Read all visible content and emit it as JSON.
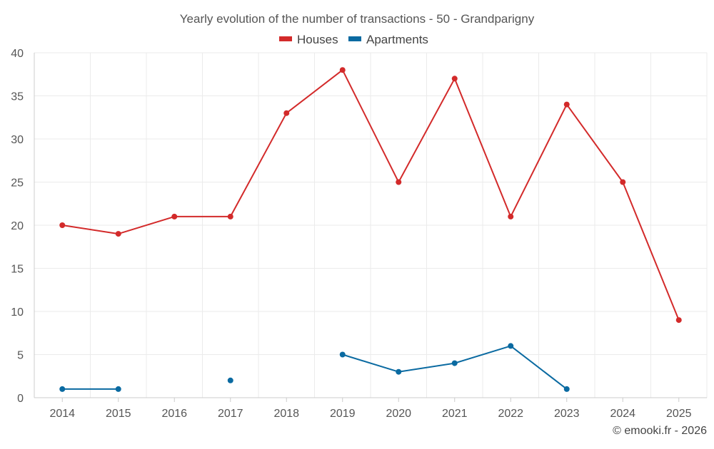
{
  "chart_data": {
    "type": "line",
    "title": "Yearly evolution of the number of transactions - 50 - Grandparigny",
    "xlabel": "",
    "ylabel": "",
    "categories": [
      "2014",
      "2015",
      "2016",
      "2017",
      "2018",
      "2019",
      "2020",
      "2021",
      "2022",
      "2023",
      "2024",
      "2025"
    ],
    "ylim": [
      0,
      40
    ],
    "yticks": [
      0,
      5,
      10,
      15,
      20,
      25,
      30,
      35,
      40
    ],
    "grid": true,
    "legend": "top-center",
    "series": [
      {
        "name": "Houses",
        "color": "#d32a2a",
        "values": [
          20,
          19,
          21,
          21,
          33,
          38,
          25,
          37,
          21,
          34,
          25,
          9
        ]
      },
      {
        "name": "Apartments",
        "color": "#0a6aa1",
        "values": [
          1,
          1,
          null,
          2,
          null,
          5,
          3,
          4,
          6,
          1,
          null,
          null
        ]
      }
    ],
    "credit": "© emooki.fr - 2026"
  }
}
